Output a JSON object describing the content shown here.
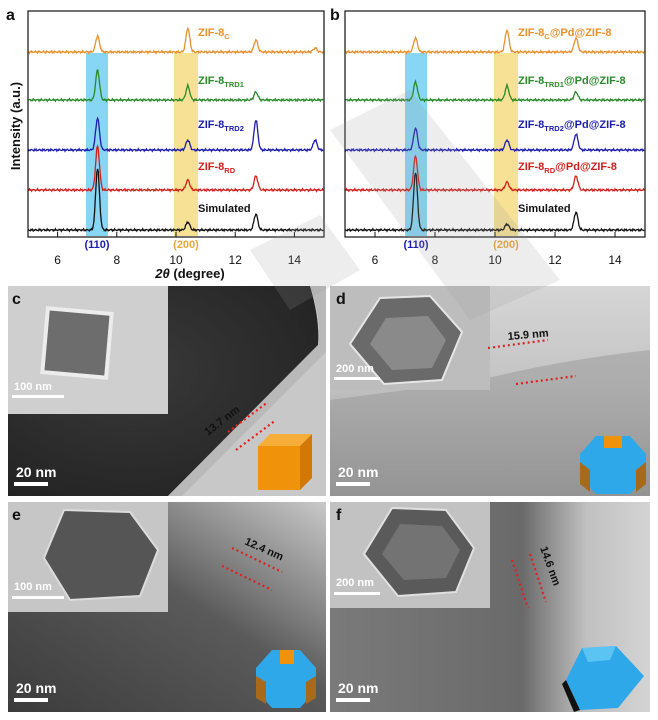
{
  "xrd": {
    "x_axis_label_italic": "2θ",
    "x_axis_label_rest": " (degree)",
    "y_axis_label": "Intensity (a.u.)",
    "x_ticks": [
      "6",
      "8",
      "10",
      "12",
      "14"
    ],
    "peak_110": "(110)",
    "peak_200": "(200)",
    "panel_a": {
      "label": "a",
      "series": [
        {
          "main": "ZIF-8",
          "sub": "C",
          "suffix": "",
          "color": "#e8902a"
        },
        {
          "main": "ZIF-8",
          "sub": "TRD1",
          "suffix": "",
          "color": "#2a8a2a"
        },
        {
          "main": "ZIF-8",
          "sub": "TRD2",
          "suffix": "",
          "color": "#1c1cae"
        },
        {
          "main": "ZIF-8",
          "sub": "RD",
          "suffix": "",
          "color": "#d0201c"
        },
        {
          "main": "Simulated",
          "sub": "",
          "suffix": "",
          "color": "#111111"
        }
      ]
    },
    "panel_b": {
      "label": "b",
      "series": [
        {
          "main": "ZIF-8",
          "sub": "C",
          "suffix": "@Pd@ZIF-8",
          "color": "#e8902a"
        },
        {
          "main": "ZIF-8",
          "sub": "TRD1",
          "suffix": "@Pd@ZIF-8",
          "color": "#2a8a2a"
        },
        {
          "main": "ZIF-8",
          "sub": "TRD2",
          "suffix": "@Pd@ZIF-8",
          "color": "#1c1cae"
        },
        {
          "main": "ZIF-8",
          "sub": "RD",
          "suffix": "@Pd@ZIF-8",
          "color": "#d0201c"
        },
        {
          "main": "Simulated",
          "sub": "",
          "suffix": "",
          "color": "#111111"
        }
      ]
    }
  },
  "tem": {
    "c": {
      "label": "c",
      "inset_scale": "100 nm",
      "scale": "20 nm",
      "thickness": "13.7 nm"
    },
    "d": {
      "label": "d",
      "inset_scale": "200 nm",
      "scale": "20 nm",
      "thickness": "15.9 nm"
    },
    "e": {
      "label": "e",
      "inset_scale": "100 nm",
      "scale": "20 nm",
      "thickness": "12.4 nm"
    },
    "f": {
      "label": "f",
      "inset_scale": "200 nm",
      "scale": "20 nm",
      "thickness": "14.6 nm"
    }
  }
}
